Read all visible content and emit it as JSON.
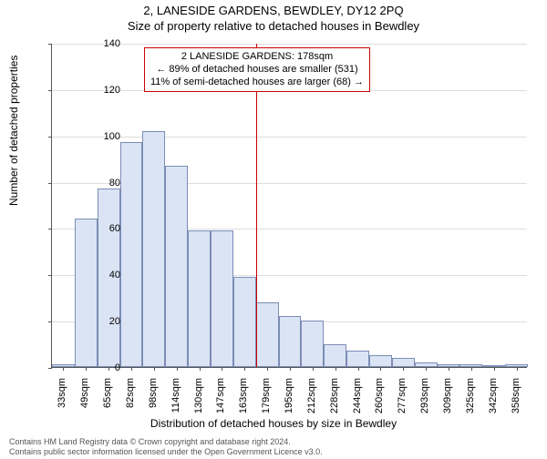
{
  "title_main": "2, LANESIDE GARDENS, BEWDLEY, DY12 2PQ",
  "title_sub": "Size of property relative to detached houses in Bewdley",
  "y_axis_label": "Number of detached properties",
  "x_axis_label": "Distribution of detached houses by size in Bewdley",
  "footer_line1": "Contains HM Land Registry data © Crown copyright and database right 2024.",
  "footer_line2": "Contains public sector information licensed under the Open Government Licence v3.0.",
  "chart": {
    "type": "histogram",
    "ylim": [
      0,
      140
    ],
    "ytick_step": 20,
    "background_color": "#ffffff",
    "grid_color": "#dddddd",
    "axis_color": "#555555",
    "bar_fill": "#dbe4f5",
    "bar_border": "#7b8db5",
    "highlight_color": "#cc0000",
    "highlight_x_index": 9,
    "categories": [
      "33sqm",
      "49sqm",
      "65sqm",
      "82sqm",
      "98sqm",
      "114sqm",
      "130sqm",
      "147sqm",
      "163sqm",
      "179sqm",
      "195sqm",
      "212sqm",
      "228sqm",
      "244sqm",
      "260sqm",
      "277sqm",
      "293sqm",
      "309sqm",
      "325sqm",
      "342sqm",
      "358sqm"
    ],
    "values": [
      1,
      64,
      77,
      97,
      102,
      87,
      59,
      59,
      39,
      28,
      22,
      20,
      10,
      7,
      5,
      4,
      2,
      1,
      1,
      0,
      1
    ],
    "bar_width_ratio": 1.0,
    "label_fontsize": 11,
    "title_fontsize": 13
  },
  "annotation": {
    "line1": "2 LANESIDE GARDENS: 178sqm",
    "line2": "← 89% of detached houses are smaller (531)",
    "line3": "11% of semi-detached houses are larger (68) →",
    "border_color": "#cc0000"
  }
}
